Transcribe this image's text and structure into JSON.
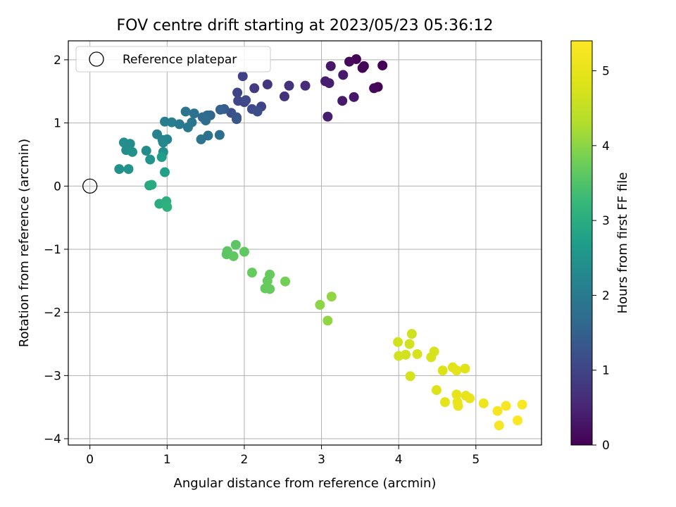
{
  "chart_data": {
    "type": "scatter",
    "title": "FOV centre drift starting at 2023/05/23 05:36:12",
    "xlabel": "Angular distance from reference (arcmin)",
    "ylabel": "Rotation from reference (arcmin)",
    "xlim": [
      -0.28,
      5.85
    ],
    "ylim": [
      -4.1,
      2.3
    ],
    "xticks": [
      0,
      1,
      2,
      3,
      4,
      5
    ],
    "yticks": [
      -4,
      -3,
      -2,
      -1,
      0,
      1,
      2
    ],
    "grid": true,
    "legend": {
      "placement": "upper-left",
      "entries": [
        "Reference platepar"
      ]
    },
    "reference_point": {
      "x": 0,
      "y": 0,
      "label": "Reference platepar"
    },
    "colorbar": {
      "label": "Hours from first FF file",
      "range": [
        0,
        5.4
      ],
      "ticks": [
        0,
        1,
        2,
        3,
        4,
        5
      ],
      "colormap": "viridis"
    },
    "points": [
      {
        "x": 3.45,
        "y": 2.01,
        "h": 0.05
      },
      {
        "x": 3.36,
        "y": 1.97,
        "h": 0.1
      },
      {
        "x": 3.55,
        "y": 1.9,
        "h": 0.05
      },
      {
        "x": 3.79,
        "y": 1.91,
        "h": 0.0
      },
      {
        "x": 3.53,
        "y": 1.87,
        "h": 0.06
      },
      {
        "x": 3.12,
        "y": 1.9,
        "h": 0.3
      },
      {
        "x": 3.28,
        "y": 1.76,
        "h": 0.35
      },
      {
        "x": 3.73,
        "y": 1.57,
        "h": 0.02
      },
      {
        "x": 3.68,
        "y": 1.55,
        "h": 0.08
      },
      {
        "x": 3.05,
        "y": 1.66,
        "h": 0.4
      },
      {
        "x": 3.1,
        "y": 1.63,
        "h": 0.4
      },
      {
        "x": 3.42,
        "y": 1.41,
        "h": 0.3
      },
      {
        "x": 3.27,
        "y": 1.35,
        "h": 0.35
      },
      {
        "x": 3.08,
        "y": 1.1,
        "h": 0.4
      },
      {
        "x": 2.79,
        "y": 1.59,
        "h": 0.6
      },
      {
        "x": 2.58,
        "y": 1.59,
        "h": 0.7
      },
      {
        "x": 2.3,
        "y": 1.61,
        "h": 0.75
      },
      {
        "x": 2.52,
        "y": 1.42,
        "h": 0.7
      },
      {
        "x": 2.13,
        "y": 1.55,
        "h": 0.85
      },
      {
        "x": 1.98,
        "y": 1.74,
        "h": 0.95
      },
      {
        "x": 1.91,
        "y": 1.48,
        "h": 1.0
      },
      {
        "x": 1.92,
        "y": 1.35,
        "h": 1.05
      },
      {
        "x": 2.0,
        "y": 1.33,
        "h": 1.05
      },
      {
        "x": 2.02,
        "y": 1.36,
        "h": 1.1
      },
      {
        "x": 2.22,
        "y": 1.26,
        "h": 1.0
      },
      {
        "x": 2.1,
        "y": 1.22,
        "h": 1.1
      },
      {
        "x": 2.17,
        "y": 1.18,
        "h": 1.15
      },
      {
        "x": 1.83,
        "y": 1.16,
        "h": 1.2
      },
      {
        "x": 1.9,
        "y": 1.09,
        "h": 1.25
      },
      {
        "x": 1.9,
        "y": 1.06,
        "h": 1.3
      },
      {
        "x": 1.74,
        "y": 1.22,
        "h": 1.4
      },
      {
        "x": 1.69,
        "y": 1.21,
        "h": 1.5
      },
      {
        "x": 1.56,
        "y": 1.12,
        "h": 1.6
      },
      {
        "x": 1.52,
        "y": 1.12,
        "h": 1.65
      },
      {
        "x": 1.46,
        "y": 1.09,
        "h": 1.7
      },
      {
        "x": 1.5,
        "y": 1.04,
        "h": 1.7
      },
      {
        "x": 1.53,
        "y": 0.8,
        "h": 1.8
      },
      {
        "x": 1.44,
        "y": 0.74,
        "h": 1.85
      },
      {
        "x": 1.68,
        "y": 0.81,
        "h": 1.75
      },
      {
        "x": 1.35,
        "y": 1.15,
        "h": 1.8
      },
      {
        "x": 1.32,
        "y": 1.01,
        "h": 1.9
      },
      {
        "x": 1.27,
        "y": 0.93,
        "h": 1.95
      },
      {
        "x": 1.24,
        "y": 1.18,
        "h": 1.9
      },
      {
        "x": 1.16,
        "y": 0.98,
        "h": 2.0
      },
      {
        "x": 1.06,
        "y": 1.01,
        "h": 2.05
      },
      {
        "x": 0.97,
        "y": 1.02,
        "h": 2.1
      },
      {
        "x": 0.94,
        "y": 0.73,
        "h": 2.2
      },
      {
        "x": 1.0,
        "y": 0.74,
        "h": 2.2
      },
      {
        "x": 0.95,
        "y": 0.69,
        "h": 2.25
      },
      {
        "x": 0.87,
        "y": 0.82,
        "h": 2.15
      },
      {
        "x": 0.95,
        "y": 0.54,
        "h": 2.4
      },
      {
        "x": 0.78,
        "y": 0.42,
        "h": 2.5
      },
      {
        "x": 0.73,
        "y": 0.56,
        "h": 2.35
      },
      {
        "x": 0.44,
        "y": 0.69,
        "h": 2.4
      },
      {
        "x": 0.52,
        "y": 0.67,
        "h": 2.35
      },
      {
        "x": 0.47,
        "y": 0.57,
        "h": 2.4
      },
      {
        "x": 0.55,
        "y": 0.54,
        "h": 2.45
      },
      {
        "x": 0.5,
        "y": 0.27,
        "h": 2.5
      },
      {
        "x": 0.38,
        "y": 0.27,
        "h": 2.45
      },
      {
        "x": 0.93,
        "y": 0.46,
        "h": 2.7
      },
      {
        "x": 0.97,
        "y": 0.22,
        "h": 2.75
      },
      {
        "x": 0.77,
        "y": 0.01,
        "h": 2.9
      },
      {
        "x": 0.8,
        "y": 0.02,
        "h": 2.95
      },
      {
        "x": 0.9,
        "y": -0.28,
        "h": 3.0
      },
      {
        "x": 0.99,
        "y": -0.24,
        "h": 3.05
      },
      {
        "x": 1.0,
        "y": -0.33,
        "h": 3.1
      },
      {
        "x": 1.89,
        "y": -0.93,
        "h": 3.6
      },
      {
        "x": 1.78,
        "y": -1.03,
        "h": 3.6
      },
      {
        "x": 1.77,
        "y": -1.08,
        "h": 3.6
      },
      {
        "x": 1.86,
        "y": -1.11,
        "h": 3.65
      },
      {
        "x": 2.0,
        "y": -1.04,
        "h": 3.65
      },
      {
        "x": 2.1,
        "y": -1.37,
        "h": 3.7
      },
      {
        "x": 2.33,
        "y": -1.4,
        "h": 3.7
      },
      {
        "x": 2.3,
        "y": -1.5,
        "h": 3.7
      },
      {
        "x": 2.27,
        "y": -1.62,
        "h": 3.7
      },
      {
        "x": 2.33,
        "y": -1.63,
        "h": 3.7
      },
      {
        "x": 2.53,
        "y": -1.51,
        "h": 3.8
      },
      {
        "x": 2.98,
        "y": -1.88,
        "h": 4.0
      },
      {
        "x": 3.13,
        "y": -1.75,
        "h": 4.05
      },
      {
        "x": 3.08,
        "y": -2.13,
        "h": 4.05
      },
      {
        "x": 4.17,
        "y": -2.34,
        "h": 4.65
      },
      {
        "x": 3.99,
        "y": -2.47,
        "h": 4.7
      },
      {
        "x": 4.14,
        "y": -2.5,
        "h": 4.7
      },
      {
        "x": 4.46,
        "y": -2.62,
        "h": 4.75
      },
      {
        "x": 4.24,
        "y": -2.66,
        "h": 4.75
      },
      {
        "x": 4.09,
        "y": -2.67,
        "h": 4.7
      },
      {
        "x": 4.0,
        "y": -2.69,
        "h": 4.7
      },
      {
        "x": 4.42,
        "y": -2.71,
        "h": 4.75
      },
      {
        "x": 4.15,
        "y": -3.01,
        "h": 4.75
      },
      {
        "x": 4.57,
        "y": -2.92,
        "h": 4.85
      },
      {
        "x": 4.7,
        "y": -2.87,
        "h": 4.9
      },
      {
        "x": 4.75,
        "y": -2.92,
        "h": 4.95
      },
      {
        "x": 4.86,
        "y": -2.89,
        "h": 4.9
      },
      {
        "x": 4.49,
        "y": -3.23,
        "h": 4.85
      },
      {
        "x": 4.75,
        "y": -3.3,
        "h": 5.0
      },
      {
        "x": 4.87,
        "y": -3.32,
        "h": 5.0
      },
      {
        "x": 4.92,
        "y": -3.36,
        "h": 5.05
      },
      {
        "x": 4.6,
        "y": -3.42,
        "h": 4.95
      },
      {
        "x": 4.76,
        "y": -3.42,
        "h": 5.05
      },
      {
        "x": 4.77,
        "y": -3.48,
        "h": 5.05
      },
      {
        "x": 5.1,
        "y": -3.44,
        "h": 5.15
      },
      {
        "x": 5.28,
        "y": -3.56,
        "h": 5.25
      },
      {
        "x": 5.39,
        "y": -3.48,
        "h": 5.3
      },
      {
        "x": 5.6,
        "y": -3.46,
        "h": 5.35
      },
      {
        "x": 5.3,
        "y": -3.79,
        "h": 5.3
      },
      {
        "x": 5.54,
        "y": -3.71,
        "h": 5.4
      }
    ]
  }
}
